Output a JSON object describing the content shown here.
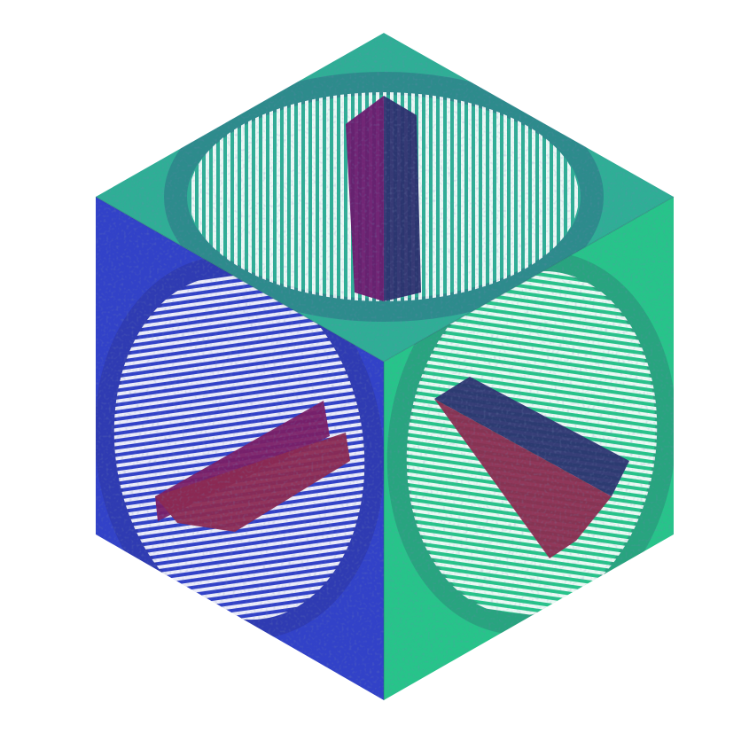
{
  "scene": {
    "subject": "cube",
    "faces": [
      {
        "name": "top",
        "base_color": "#2fae96",
        "ring_dark": "#2a4a7a",
        "wedge_a": "#6a1a6e",
        "wedge_b": "#2c2f6e"
      },
      {
        "name": "left",
        "base_color": "#3242c8",
        "ring_dark": "#2a2f8a",
        "wedge_a": "#7a1f66",
        "wedge_b": "#8b2a52"
      },
      {
        "name": "right",
        "base_color": "#27c48a",
        "ring_dark": "#2a6a6a",
        "wedge_a": "#2c3470",
        "wedge_b": "#8b2c50"
      }
    ],
    "stripe_color": "#ffffff",
    "background": "#ffffff"
  }
}
